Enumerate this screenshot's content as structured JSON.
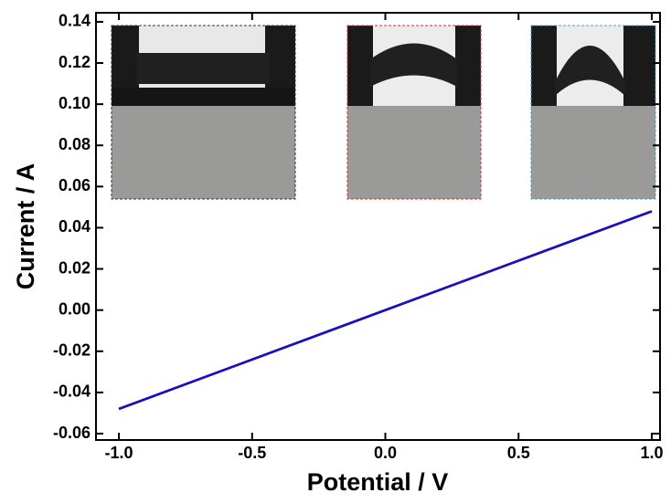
{
  "chart_data": {
    "type": "line",
    "x_label": "Potential / V",
    "y_label": "Current / A",
    "x": [
      -1,
      1
    ],
    "series": [
      {
        "color": "#000000",
        "values": [
          -0.048,
          0.048
        ]
      },
      {
        "color": "#d01010",
        "values": [
          -0.048,
          0.048
        ]
      },
      {
        "color": "#1010d0",
        "values": [
          -0.048,
          0.048
        ]
      }
    ],
    "xlim": [
      -1.086,
      1.031
    ],
    "ylim": [
      -0.0631,
      0.1444
    ],
    "xticks": [
      {
        "value": -1,
        "label": "-1.0"
      },
      -0.5,
      {
        "value": 0,
        "label": "0.0"
      },
      0.5,
      {
        "value": 1,
        "label": "1.0"
      }
    ],
    "yticks": [
      -0.06,
      -0.04,
      -0.02,
      {
        "value": 0,
        "label": "0.00"
      },
      0.02,
      0.04,
      0.06,
      0.08,
      {
        "value": 0.1,
        "label": "0.10"
      },
      0.12,
      0.14
    ],
    "grid": false
  }
}
